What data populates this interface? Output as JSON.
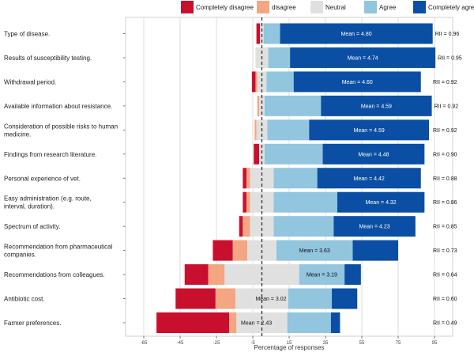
{
  "chart_data": {
    "type": "bar",
    "subtype": "diverging-stacked-horizontal",
    "title": "",
    "xlabel": "Percentage of responses",
    "ylabel": "",
    "xlim": [
      -75,
      105
    ],
    "x_ticks": [
      -65,
      -45,
      -25,
      -5,
      15,
      35,
      55,
      75,
      95
    ],
    "grid": true,
    "legend_position": "top",
    "legend": [
      {
        "name": "Completely disagree",
        "color": "#c8102e"
      },
      {
        "name": "disagree",
        "color": "#f4a582"
      },
      {
        "name": "Neutral",
        "color": "#e0e0e0"
      },
      {
        "name": "Agree",
        "color": "#92c5de"
      },
      {
        "name": "Completely agree",
        "color": "#0a4fa3"
      }
    ],
    "rows": [
      {
        "label": "Type of disease.",
        "label_lines": [
          "Type of disease."
        ],
        "completely_disagree": 2,
        "disagree": 0,
        "neutral": 2,
        "agree": 9,
        "completely_agree": 84,
        "mean": "Mean = 4.80",
        "rii": "RII = 0.96"
      },
      {
        "label": "Results of susceptibility testing.",
        "label_lines": [
          "Results of susceptibility testing."
        ],
        "completely_disagree": 0,
        "disagree": 0,
        "neutral": 7,
        "agree": 12,
        "completely_agree": 80,
        "mean": "Mean = 4.74",
        "rii": "RII = 0.95"
      },
      {
        "label": "Withdrawal period.",
        "label_lines": [
          "Withdrawal period."
        ],
        "completely_disagree": 2,
        "disagree": 1,
        "neutral": 5,
        "agree": 15,
        "completely_agree": 70,
        "mean": "Mean = 4.60",
        "rii": "RII = 0.92"
      },
      {
        "label": "Available information about resistance.",
        "label_lines": [
          "Available information about resistance."
        ],
        "completely_disagree": 0,
        "disagree": 1,
        "neutral": 3,
        "agree": 31,
        "completely_agree": 61,
        "mean": "Mean = 4.59",
        "rii": "RII = 0.92"
      },
      {
        "label": "Consideration of possible risks to human medicine.",
        "label_lines": [
          "Consideration of possible risks to human",
          "medicine."
        ],
        "completely_disagree": 0,
        "disagree": 1,
        "neutral": 6,
        "agree": 23,
        "completely_agree": 66,
        "mean": "Mean = 4.59",
        "rii": "RII = 0.92"
      },
      {
        "label": "Findings from research literature.",
        "label_lines": [
          "Findings from research literature."
        ],
        "completely_disagree": 3,
        "disagree": 0,
        "neutral": 3,
        "agree": 32,
        "completely_agree": 56,
        "mean": "Mean = 4.48",
        "rii": "RII = 0.90"
      },
      {
        "label": "Personal experience of vet.",
        "label_lines": [
          "Personal experience of vet."
        ],
        "completely_disagree": 2,
        "disagree": 2,
        "neutral": 13,
        "agree": 24,
        "completely_agree": 57,
        "mean": "Mean = 4.42",
        "rii": "RII = 0.88"
      },
      {
        "label": "Easy administration (e.g. route, interval, duration).",
        "label_lines": [
          "Easy administration (e.g. route,",
          "interval, duration)."
        ],
        "completely_disagree": 2,
        "disagree": 2,
        "neutral": 13,
        "agree": 35,
        "completely_agree": 48,
        "mean": "Mean = 4.32",
        "rii": "RII = 0.86"
      },
      {
        "label": "Spectrum of activity.",
        "label_lines": [
          "Spectrum of activity."
        ],
        "completely_disagree": 2,
        "disagree": 4,
        "neutral": 13,
        "agree": 33,
        "completely_agree": 45,
        "mean": "Mean = 4.23",
        "rii": "RII = 0.85"
      },
      {
        "label": "Recommendation from pharmaceutical companies.",
        "label_lines": [
          "Recommendation from pharmaceutical",
          "companies."
        ],
        "completely_disagree": 11,
        "disagree": 8,
        "neutral": 16,
        "agree": 42,
        "completely_agree": 25,
        "mean": "Mean = 3.63",
        "rii": "RII = 0.73"
      },
      {
        "label": "Recommendations from colleagues.",
        "label_lines": [
          "Recommendations from colleagues."
        ],
        "completely_disagree": 13,
        "disagree": 9,
        "neutral": 41,
        "agree": 25,
        "completely_agree": 9,
        "mean": "Mean = 3.19",
        "rii": "RII = 0.64"
      },
      {
        "label": "Antibiotic cost.",
        "label_lines": [
          "Antibiotic cost."
        ],
        "completely_disagree": 22,
        "disagree": 11,
        "neutral": 29,
        "agree": 24,
        "completely_agree": 14,
        "mean": "Mean = 3.02",
        "rii": "RII = 0.60"
      },
      {
        "label": "Farmer preferences.",
        "label_lines": [
          "Farmer preferences."
        ],
        "completely_disagree": 40,
        "disagree": 4,
        "neutral": 28,
        "agree": 24,
        "completely_agree": 5,
        "mean": "Mean = 2.43",
        "rii": "RII = 0.49"
      }
    ]
  }
}
